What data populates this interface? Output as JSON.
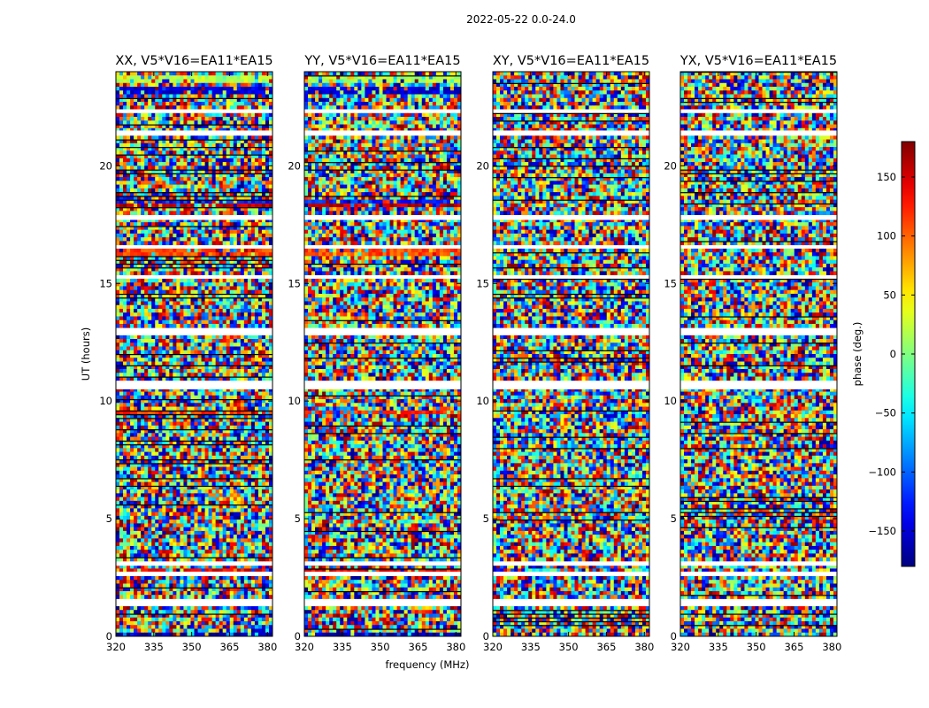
{
  "figure": {
    "suptitle": "2022-05-22 0.0-24.0",
    "xlabel": "frequency (MHz)",
    "ylabel": "UT (hours)"
  },
  "chart_data": {
    "type": "heatmap",
    "colormap": "jet",
    "x_range": [
      320,
      382
    ],
    "y_range": [
      0,
      24
    ],
    "x_ticks": [
      "320",
      "335",
      "350",
      "365",
      "380"
    ],
    "y_ticks": [
      "0",
      "5",
      "10",
      "15",
      "20"
    ],
    "panels": [
      {
        "title": "XX, V5*V16=EA11*EA15"
      },
      {
        "title": "YY, V5*V16=EA11*EA15"
      },
      {
        "title": "XY, V5*V16=EA11*EA15"
      },
      {
        "title": "YX, V5*V16=EA11*EA15"
      }
    ],
    "colorbar": {
      "label": "phase (deg.)",
      "range": [
        -180,
        180
      ],
      "ticks": [
        "150",
        "100",
        "50",
        "0",
        "−50",
        "−100",
        "−150"
      ]
    },
    "flagged_gaps_hours": [
      [
        1.32,
        1.55
      ],
      [
        2.6,
        2.75
      ],
      [
        3.0,
        3.15
      ],
      [
        10.5,
        10.8
      ],
      [
        12.8,
        13.05
      ],
      [
        15.25,
        15.35
      ],
      [
        16.5,
        16.6
      ],
      [
        17.7,
        17.85
      ],
      [
        21.35,
        21.5
      ],
      [
        22.3,
        22.4
      ]
    ],
    "bright_bands_hours": [
      {
        "y": 0.05,
        "v": -160
      },
      {
        "y": 2.75,
        "v": 140
      },
      {
        "y": 9.5,
        "v": 120
      },
      {
        "y": 13.0,
        "v": 150
      },
      {
        "y": 16.3,
        "v": 110
      },
      {
        "y": 18.5,
        "v": -120
      },
      {
        "y": 18.3,
        "v": 160
      },
      {
        "y": 23.2,
        "v": -150
      },
      {
        "y": 23.7,
        "v": 20
      }
    ]
  }
}
